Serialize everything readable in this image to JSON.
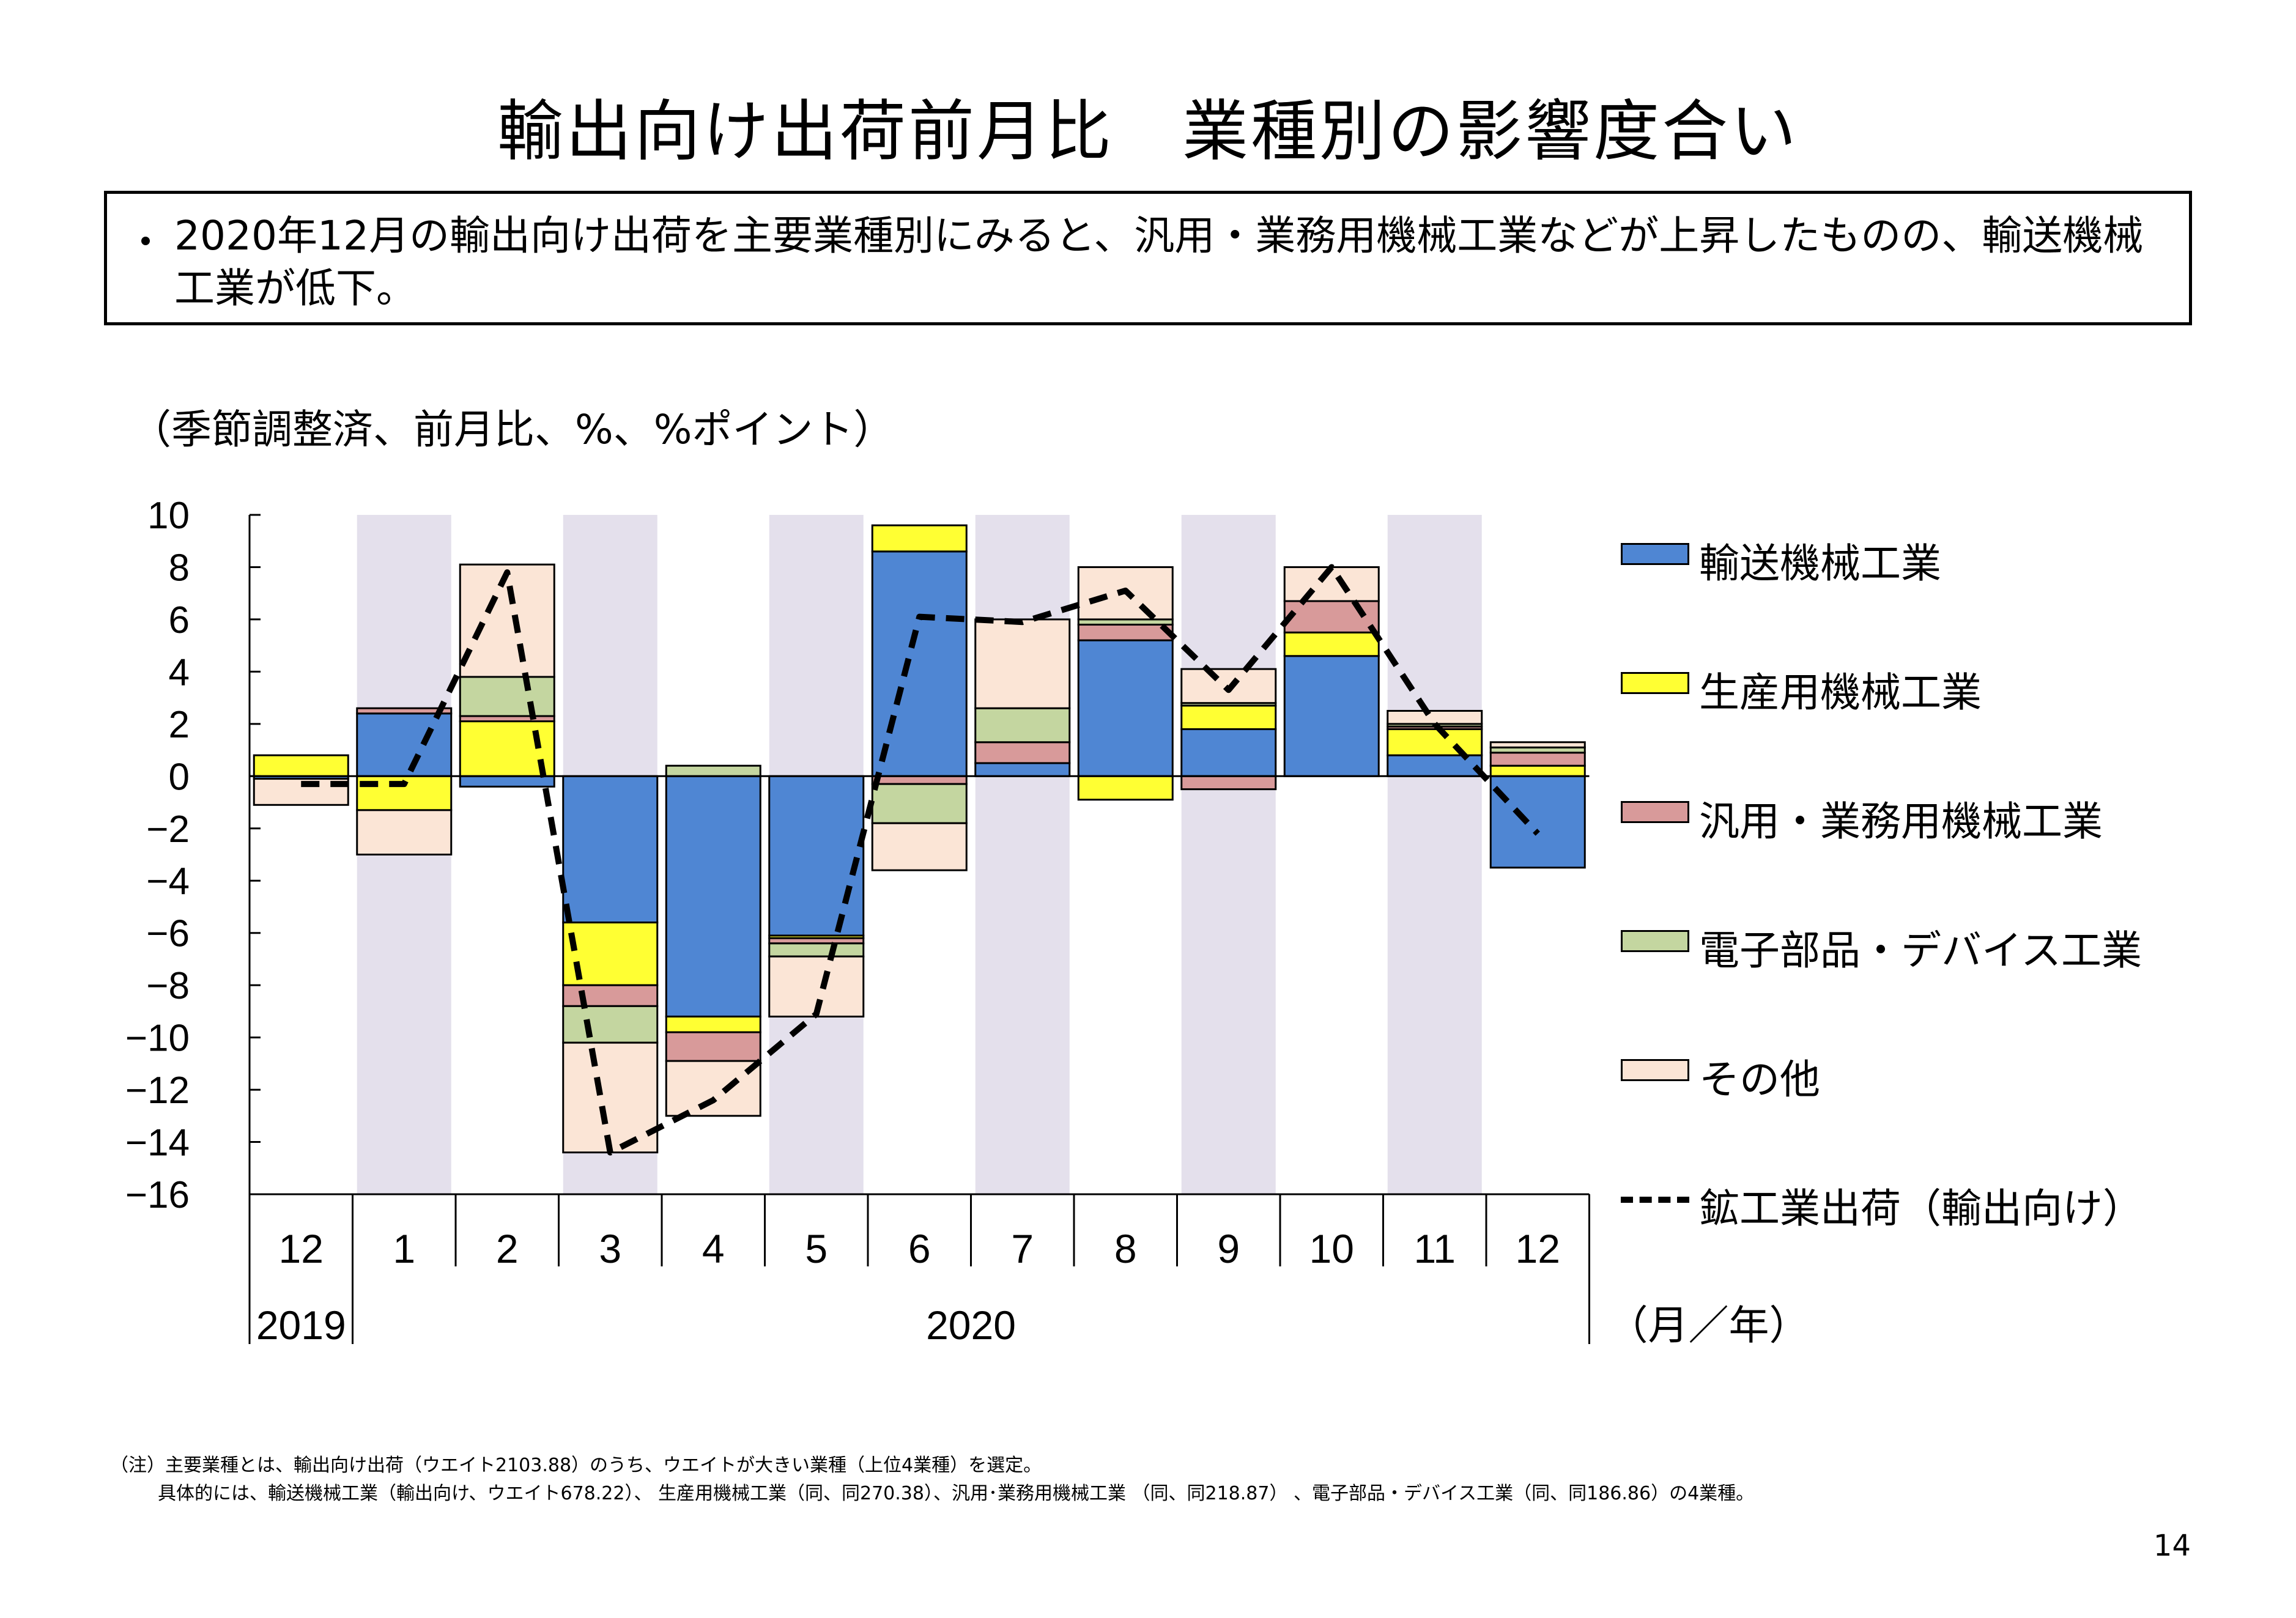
{
  "title": "輸出向け出荷前月比　業種別の影響度合い",
  "summary": {
    "bullet": "・",
    "text": "2020年12月の輸出向け出荷を主要業種別にみると、汎用・業務用機械工業などが上昇したものの、輸送機械工業が低下。"
  },
  "colors": {
    "transport": "#4f86d3",
    "production": "#ffff33",
    "general": "#d89a9a",
    "electronic": "#c4d6a0",
    "other": "#fbe5d6",
    "shade": "#e4e0ec"
  },
  "chart_data": {
    "type": "bar",
    "subtype": "stacked-bar-with-line",
    "unit_label": "（季節調整済、前月比、%、%ポイント）",
    "months": [
      "12",
      "1",
      "2",
      "3",
      "4",
      "5",
      "6",
      "7",
      "8",
      "9",
      "10",
      "11",
      "12"
    ],
    "years": [
      {
        "label": "2019",
        "from": 0,
        "to": 0
      },
      {
        "label": "2020",
        "from": 1,
        "to": 12
      }
    ],
    "axis_unit": "（月／年）",
    "ylim": [
      -16,
      10
    ],
    "yticks": [
      10,
      8,
      6,
      4,
      2,
      0,
      -2,
      -4,
      -6,
      -8,
      -10,
      -12,
      -14,
      -16
    ],
    "ytick_labels": [
      "10",
      "8",
      "6",
      "4",
      "2",
      "0",
      "−2",
      "−4",
      "−6",
      "−8",
      "−10",
      "−12",
      "−14",
      "−16"
    ],
    "shaded_months": [
      1,
      3,
      5,
      7,
      9,
      11
    ],
    "series": [
      {
        "name": "輸送機械工業",
        "color_key": "transport",
        "values": [
          -0.1,
          2.4,
          -0.4,
          -5.6,
          -9.2,
          -6.1,
          8.6,
          0.5,
          5.2,
          1.8,
          4.6,
          0.8,
          -3.5
        ]
      },
      {
        "name": "生産用機械工業",
        "color_key": "production",
        "values": [
          0.8,
          -1.3,
          2.1,
          -2.4,
          -0.6,
          -0.1,
          1.0,
          0.0,
          -0.9,
          0.9,
          0.9,
          1.0,
          0.4
        ]
      },
      {
        "name": "汎用・業務用機械工業",
        "color_key": "general",
        "values": [
          0.0,
          0.2,
          0.2,
          -0.8,
          -1.1,
          -0.2,
          -0.3,
          0.8,
          0.6,
          -0.5,
          1.2,
          0.1,
          0.5
        ]
      },
      {
        "name": "電子部品・デバイス工業",
        "color_key": "electronic",
        "values": [
          0.0,
          0.0,
          1.5,
          -1.4,
          0.4,
          -0.5,
          -1.5,
          1.3,
          0.2,
          0.1,
          0.0,
          0.1,
          0.2
        ]
      },
      {
        "name": "その他",
        "color_key": "other",
        "values": [
          -1.0,
          -1.7,
          4.3,
          -4.2,
          -2.1,
          -2.3,
          -1.8,
          3.4,
          2.0,
          1.3,
          1.3,
          0.5,
          0.2
        ]
      }
    ],
    "line": {
      "name": "鉱工業出荷（輸出向け）",
      "values": [
        -0.3,
        -0.3,
        7.8,
        -14.4,
        -12.4,
        -9.1,
        6.1,
        5.9,
        7.1,
        3.3,
        8.0,
        2.0,
        -2.2
      ]
    }
  },
  "legend": [
    {
      "label": "輸送機械工業",
      "color_key": "transport"
    },
    {
      "label": "生産用機械工業",
      "color_key": "production"
    },
    {
      "label": "汎用・業務用機械工業",
      "color_key": "general"
    },
    {
      "label": "電子部品・デバイス工業",
      "color_key": "electronic"
    },
    {
      "label": "その他",
      "color_key": "other"
    },
    {
      "label": "鉱工業出荷（輸出向け）",
      "color_key": "line"
    }
  ],
  "footnote": {
    "line1": "（注）主要業種とは、輸出向け出荷（ウエイト2103.88）のうち、ウエイトが大きい業種（上位4業種）を選定。",
    "line2": "具体的には、輸送機械工業（輸出向け、ウエイト678.22）、 生産用機械工業（同、同270.38）、汎用･業務用機械工業 （同、同218.87） 、電子部品・デバイス工業（同、同186.86）の4業種。"
  },
  "page_number": "14"
}
